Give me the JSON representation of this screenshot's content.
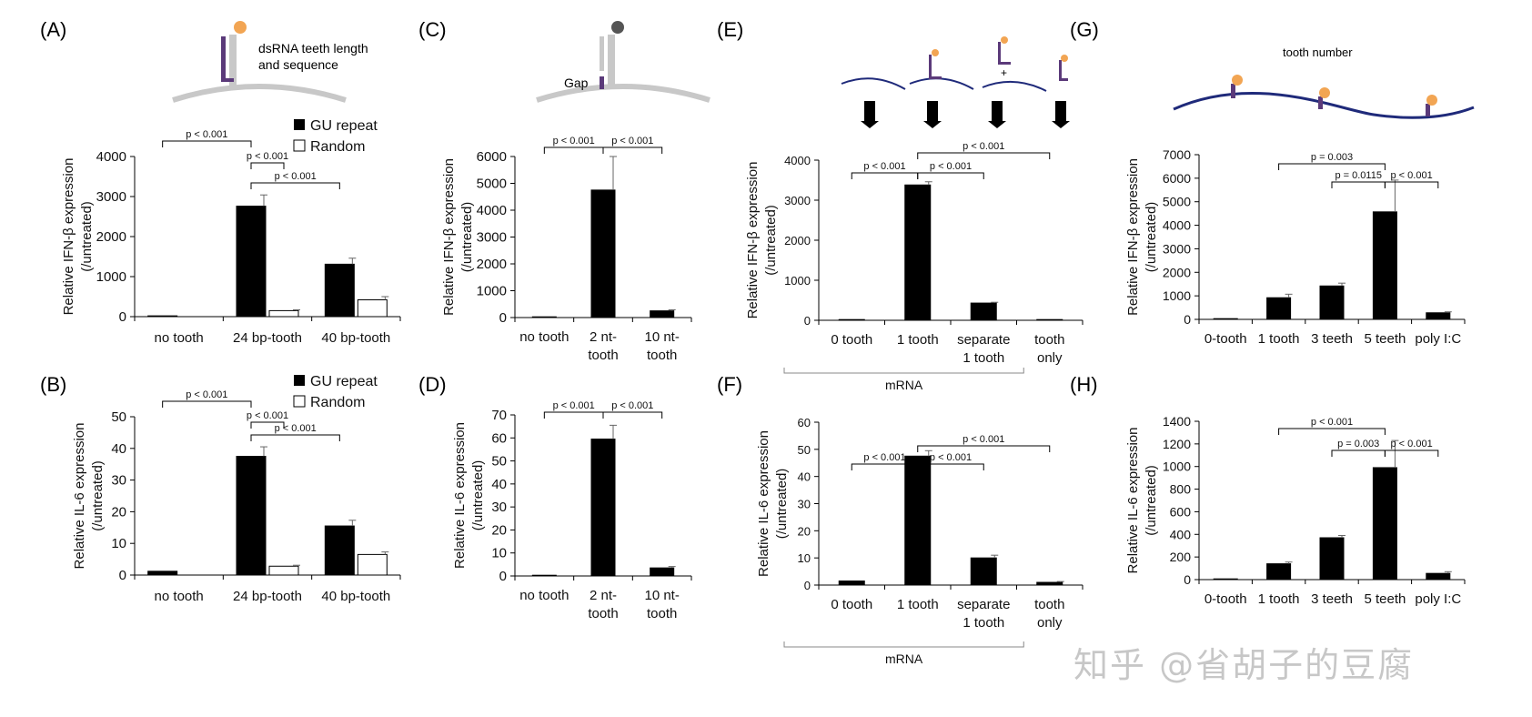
{
  "watermark": "知乎 @省胡子的豆腐",
  "colors": {
    "black_bar": "#000000",
    "white_bar": "#ffffff",
    "axis": "#000000",
    "strand": "#1f2a7a",
    "purple": "#5b3a7a",
    "orange": "#f2a553",
    "grey": "#c8c8c8"
  },
  "panels": [
    {
      "letter": "(A)"
    },
    {
      "letter": "(B)"
    },
    {
      "letter": "(C)"
    },
    {
      "letter": "(D)"
    },
    {
      "letter": "(E)"
    },
    {
      "letter": "(F)"
    },
    {
      "letter": "(G)"
    },
    {
      "letter": "(H)"
    }
  ],
  "schematics": {
    "A_caption_1": "dsRNA teeth length",
    "A_caption_2": "and sequence",
    "C_caption": "Gap",
    "E_plus": "+",
    "G_caption": "tooth number"
  },
  "chart_data": [
    {
      "id": "A",
      "type": "bar",
      "ylabel": [
        "Relative IFN-β expression",
        "(/untreated)"
      ],
      "categories": [
        "no tooth",
        "24 bp-tooth",
        "40 bp-tooth"
      ],
      "series": [
        {
          "name": "GU repeat",
          "values": [
            20,
            2760,
            1310
          ],
          "errors": [
            0,
            280,
            150
          ]
        },
        {
          "name": "Random",
          "values": [
            0,
            150,
            420
          ],
          "errors": [
            0,
            20,
            80
          ]
        }
      ],
      "ylim": [
        0,
        4000
      ],
      "ticks": [
        0,
        1000,
        2000,
        3000,
        4000
      ],
      "legend": [
        "GU repeat",
        "Random"
      ],
      "sig": [
        {
          "label": "p < 0.001",
          "from": 0,
          "to": 1
        },
        {
          "label": "p < 0.001",
          "from": 1,
          "to": 1.5
        },
        {
          "label": "p < 0.001",
          "from": 1,
          "to": 2
        }
      ]
    },
    {
      "id": "B",
      "type": "bar",
      "ylabel": [
        "Relative IL-6 expression",
        "(/untreated)"
      ],
      "categories": [
        "no tooth",
        "24 bp-tooth",
        "40 bp-tooth"
      ],
      "series": [
        {
          "name": "GU repeat",
          "values": [
            1.2,
            37.5,
            15.5
          ],
          "errors": [
            0,
            3,
            1.8
          ]
        },
        {
          "name": "Random",
          "values": [
            0,
            2.8,
            6.5
          ],
          "errors": [
            0,
            0.3,
            0.8
          ]
        }
      ],
      "ylim": [
        0,
        50
      ],
      "ticks": [
        0,
        10,
        20,
        30,
        40,
        50
      ],
      "legend": [
        "GU repeat",
        "Random"
      ],
      "sig": [
        {
          "label": "p < 0.001",
          "from": 0,
          "to": 1
        },
        {
          "label": "p < 0.001",
          "from": 1,
          "to": 1.5
        },
        {
          "label": "p < 0.001",
          "from": 1,
          "to": 2
        }
      ]
    },
    {
      "id": "C",
      "type": "bar",
      "ylabel": [
        "Relative IFN-β expression",
        "(/untreated)"
      ],
      "categories": [
        [
          "no tooth"
        ],
        [
          "2 nt-",
          "tooth"
        ],
        [
          "10 nt-",
          "tooth"
        ]
      ],
      "values": [
        0,
        4750,
        250
      ],
      "errors": [
        0,
        1250,
        40
      ],
      "ylim": [
        0,
        6000
      ],
      "ticks": [
        0,
        1000,
        2000,
        3000,
        4000,
        5000,
        6000
      ],
      "sig": [
        {
          "label": "p < 0.001",
          "from": 0,
          "to": 1
        },
        {
          "label": "p < 0.001",
          "from": 1,
          "to": 2
        }
      ]
    },
    {
      "id": "D",
      "type": "bar",
      "ylabel": [
        "Relative IL-6 expression",
        "(/untreated)"
      ],
      "categories": [
        [
          "no tooth"
        ],
        [
          "2 nt-",
          "tooth"
        ],
        [
          "10 nt-",
          "tooth"
        ]
      ],
      "values": [
        0.3,
        59.5,
        3.5
      ],
      "errors": [
        0,
        6,
        0.6
      ],
      "ylim": [
        0,
        70
      ],
      "ticks": [
        0,
        10,
        20,
        30,
        40,
        50,
        60,
        70
      ],
      "sig": [
        {
          "label": "p < 0.001",
          "from": 0,
          "to": 1
        },
        {
          "label": "p < 0.001",
          "from": 1,
          "to": 2
        }
      ]
    },
    {
      "id": "E",
      "type": "bar",
      "ylabel": [
        "Relative IFN-β expression",
        "(/untreated)"
      ],
      "categories": [
        [
          "0 tooth"
        ],
        [
          "1 tooth"
        ],
        [
          "separate",
          "1 tooth"
        ],
        [
          "tooth",
          "only"
        ]
      ],
      "values": [
        10,
        3380,
        430,
        0
      ],
      "errors": [
        0,
        80,
        20,
        0
      ],
      "ylim": [
        0,
        4000
      ],
      "ticks": [
        0,
        1000,
        2000,
        3000,
        4000
      ],
      "group_label": "mRNA",
      "sig": [
        {
          "label": "p < 0.001",
          "from": 0,
          "to": 1
        },
        {
          "label": "p < 0.001",
          "from": 1,
          "to": 2
        },
        {
          "label": "p < 0.001",
          "from": 1,
          "to": 3
        }
      ]
    },
    {
      "id": "F",
      "type": "bar",
      "ylabel": [
        "Relative IL-6 expression",
        "(/untreated)"
      ],
      "categories": [
        [
          "0 tooth"
        ],
        [
          "1 tooth"
        ],
        [
          "separate",
          "1 tooth"
        ],
        [
          "tooth",
          "only"
        ]
      ],
      "values": [
        1.5,
        47.5,
        10,
        1
      ],
      "errors": [
        0,
        2,
        1,
        0.3
      ],
      "ylim": [
        0,
        60
      ],
      "ticks": [
        0,
        10,
        20,
        30,
        40,
        50,
        60
      ],
      "group_label": "mRNA",
      "sig": [
        {
          "label": "p < 0.001",
          "from": 0,
          "to": 1
        },
        {
          "label": "p < 0.001",
          "from": 1,
          "to": 2
        },
        {
          "label": "p < 0.001",
          "from": 1,
          "to": 3
        }
      ]
    },
    {
      "id": "G",
      "type": "bar",
      "ylabel": [
        "Relative IFN-β expression",
        "(/untreated)"
      ],
      "categories": [
        [
          "0-tooth"
        ],
        [
          "1 tooth"
        ],
        [
          "3 teeth"
        ],
        [
          "5 teeth"
        ],
        [
          "poly I:C"
        ]
      ],
      "values": [
        0,
        920,
        1420,
        4570,
        280
      ],
      "errors": [
        0,
        150,
        120,
        1350,
        40
      ],
      "ylim": [
        0,
        7000
      ],
      "ticks": [
        0,
        1000,
        2000,
        3000,
        4000,
        5000,
        6000,
        7000
      ],
      "sig": [
        {
          "label": "p = 0.003",
          "from": 1,
          "to": 3
        },
        {
          "label": "p = 0.0115",
          "from": 2,
          "to": 3
        },
        {
          "label": "p < 0.001",
          "from": 3,
          "to": 4
        }
      ]
    },
    {
      "id": "H",
      "type": "bar",
      "ylabel": [
        "Relative IL-6 expression",
        "(/untreated)"
      ],
      "categories": [
        [
          "0-tooth"
        ],
        [
          "1 tooth"
        ],
        [
          "3 teeth"
        ],
        [
          "5 teeth"
        ],
        [
          "poly I:C"
        ]
      ],
      "values": [
        0,
        140,
        370,
        990,
        55
      ],
      "errors": [
        0,
        15,
        20,
        240,
        15
      ],
      "ylim": [
        0,
        1400
      ],
      "ticks": [
        0,
        200,
        400,
        600,
        800,
        1000,
        1200,
        1400
      ],
      "sig": [
        {
          "label": "p < 0.001",
          "from": 1,
          "to": 3
        },
        {
          "label": "p = 0.003",
          "from": 2,
          "to": 3
        },
        {
          "label": "p < 0.001",
          "from": 3,
          "to": 4
        }
      ]
    }
  ]
}
